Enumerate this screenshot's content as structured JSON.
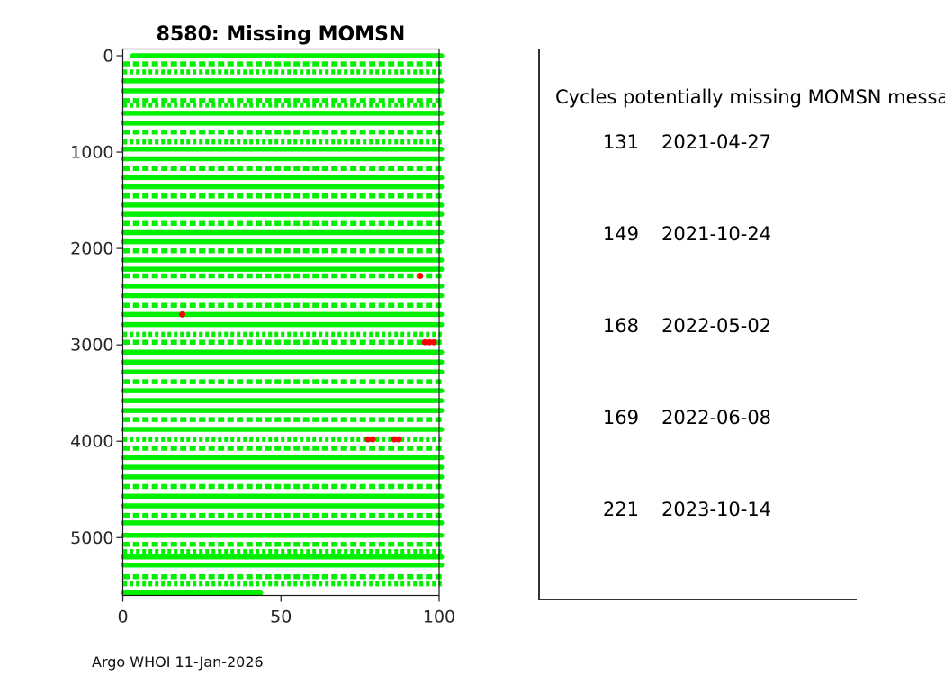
{
  "figure": {
    "footer": "Argo WHOI 11-Jan-2026"
  },
  "panel": {
    "header": "Cycles potentially missing MOMSN messa",
    "items": [
      {
        "cycle": "131",
        "date": "2021-04-27"
      },
      {
        "cycle": "149",
        "date": "2021-10-24"
      },
      {
        "cycle": "168",
        "date": "2022-05-02"
      },
      {
        "cycle": "169",
        "date": "2022-06-08"
      },
      {
        "cycle": "221",
        "date": "2023-10-14"
      }
    ]
  },
  "chart_data": {
    "type": "scatter",
    "title": "8580: Missing MOMSN",
    "xlabel": "",
    "ylabel": "",
    "xlim": [
      0,
      100
    ],
    "ylim": [
      -70,
      5600
    ],
    "y_axis_reversed_depth_down": true,
    "x_ticks": [
      0,
      50,
      100
    ],
    "y_ticks": [
      0,
      1000,
      2000,
      3000,
      4000,
      5000
    ],
    "grid": false,
    "legend": "none",
    "colors": {
      "ok": "#00f000",
      "missing": "#ff0000",
      "axis": "#1a1a1a",
      "tick_label": "#262626"
    },
    "row_default_x_range": [
      0.2,
      100.8
    ],
    "rows": [
      [
        0,
        "s",
        3.1,
        100.8
      ],
      [
        84,
        "d"
      ],
      [
        168,
        "f"
      ],
      [
        261,
        "s"
      ],
      [
        364,
        "s"
      ],
      [
        466,
        "d"
      ],
      [
        513,
        "f"
      ],
      [
        597,
        "s"
      ],
      [
        699,
        "s"
      ],
      [
        792,
        "d"
      ],
      [
        895,
        "f"
      ],
      [
        969,
        "s"
      ],
      [
        1070,
        "s"
      ],
      [
        1170,
        "d"
      ],
      [
        1265,
        "s"
      ],
      [
        1360,
        "s"
      ],
      [
        1455,
        "d"
      ],
      [
        1550,
        "s"
      ],
      [
        1645,
        "s"
      ],
      [
        1740,
        "d"
      ],
      [
        1835,
        "s"
      ],
      [
        1930,
        "s"
      ],
      [
        2025,
        "d"
      ],
      [
        2120,
        "s"
      ],
      [
        2215,
        "s"
      ],
      [
        2284,
        "d"
      ],
      [
        2390,
        "s"
      ],
      [
        2490,
        "s"
      ],
      [
        2590,
        "d"
      ],
      [
        2684,
        "s"
      ],
      [
        2790,
        "s"
      ],
      [
        2890,
        "f"
      ],
      [
        2973,
        "d"
      ],
      [
        3076,
        "s"
      ],
      [
        3178,
        "s"
      ],
      [
        3281,
        "s"
      ],
      [
        3383,
        "d"
      ],
      [
        3476,
        "s"
      ],
      [
        3579,
        "s"
      ],
      [
        3682,
        "s"
      ],
      [
        3775,
        "d"
      ],
      [
        3877,
        "s"
      ],
      [
        3980,
        "f"
      ],
      [
        4073,
        "d"
      ],
      [
        4170,
        "s"
      ],
      [
        4270,
        "s"
      ],
      [
        4370,
        "s"
      ],
      [
        4470,
        "d"
      ],
      [
        4570,
        "s"
      ],
      [
        4670,
        "s"
      ],
      [
        4770,
        "d"
      ],
      [
        4847,
        "s"
      ],
      [
        4977,
        "s"
      ],
      [
        5070,
        "d"
      ],
      [
        5145,
        "f"
      ],
      [
        5201,
        "s"
      ],
      [
        5285,
        "s"
      ],
      [
        5406,
        "d"
      ],
      [
        5480,
        "f"
      ],
      [
        5574,
        "s",
        0.2,
        43.6
      ]
    ],
    "red_points": [
      {
        "x": 94.0,
        "y": 2284
      },
      {
        "x": 18.8,
        "y": 2684
      },
      {
        "x": 95.5,
        "y": 2973
      },
      {
        "x": 97.0,
        "y": 2973
      },
      {
        "x": 98.3,
        "y": 2973
      },
      {
        "x": 77.5,
        "y": 3980
      },
      {
        "x": 79.0,
        "y": 3980
      },
      {
        "x": 85.8,
        "y": 3980
      },
      {
        "x": 87.2,
        "y": 3980
      }
    ]
  }
}
